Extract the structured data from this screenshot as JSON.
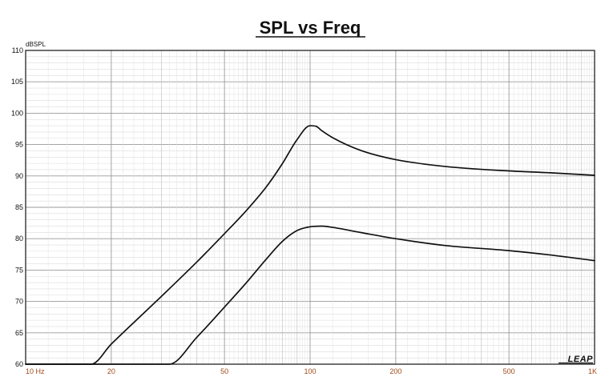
{
  "chart_data": {
    "type": "line",
    "title": "SPL vs Freq",
    "ylabel": "dBSPL",
    "xlabel": "",
    "xscale": "log",
    "xlim": [
      10,
      1000
    ],
    "ylim": [
      60,
      110
    ],
    "grid": true,
    "xticks": [
      {
        "value": 10,
        "label": "10 Hz"
      },
      {
        "value": 20,
        "label": "20"
      },
      {
        "value": 50,
        "label": "50"
      },
      {
        "value": 100,
        "label": "100"
      },
      {
        "value": 200,
        "label": "200"
      },
      {
        "value": 500,
        "label": "500"
      },
      {
        "value": 1000,
        "label": "1K"
      }
    ],
    "yticks": [
      60,
      65,
      70,
      75,
      80,
      85,
      90,
      95,
      100,
      105,
      110
    ],
    "logo": "LEAP",
    "series": [
      {
        "color": "#111111",
        "x": [
          10,
          17,
          20,
          25,
          30,
          40,
          50,
          60,
          70,
          80,
          90,
          100,
          105,
          110,
          120,
          150,
          200,
          300,
          500,
          700,
          1000
        ],
        "y": [
          60,
          60,
          63.2,
          67.4,
          70.8,
          76.3,
          80.8,
          84.6,
          88.2,
          92.0,
          95.8,
          98.0,
          97.9,
          97.2,
          96.1,
          94.1,
          92.6,
          91.5,
          90.8,
          90.5,
          90.1
        ]
      },
      {
        "color": "#111111",
        "x": [
          10,
          32,
          40,
          50,
          60,
          70,
          80,
          90,
          100,
          110,
          120,
          150,
          200,
          300,
          500,
          700,
          1000
        ],
        "y": [
          60,
          60,
          64.3,
          69.1,
          73.1,
          76.7,
          79.6,
          81.3,
          81.9,
          82.0,
          81.8,
          81.0,
          80.0,
          78.9,
          78.1,
          77.4,
          76.5
        ]
      }
    ]
  }
}
